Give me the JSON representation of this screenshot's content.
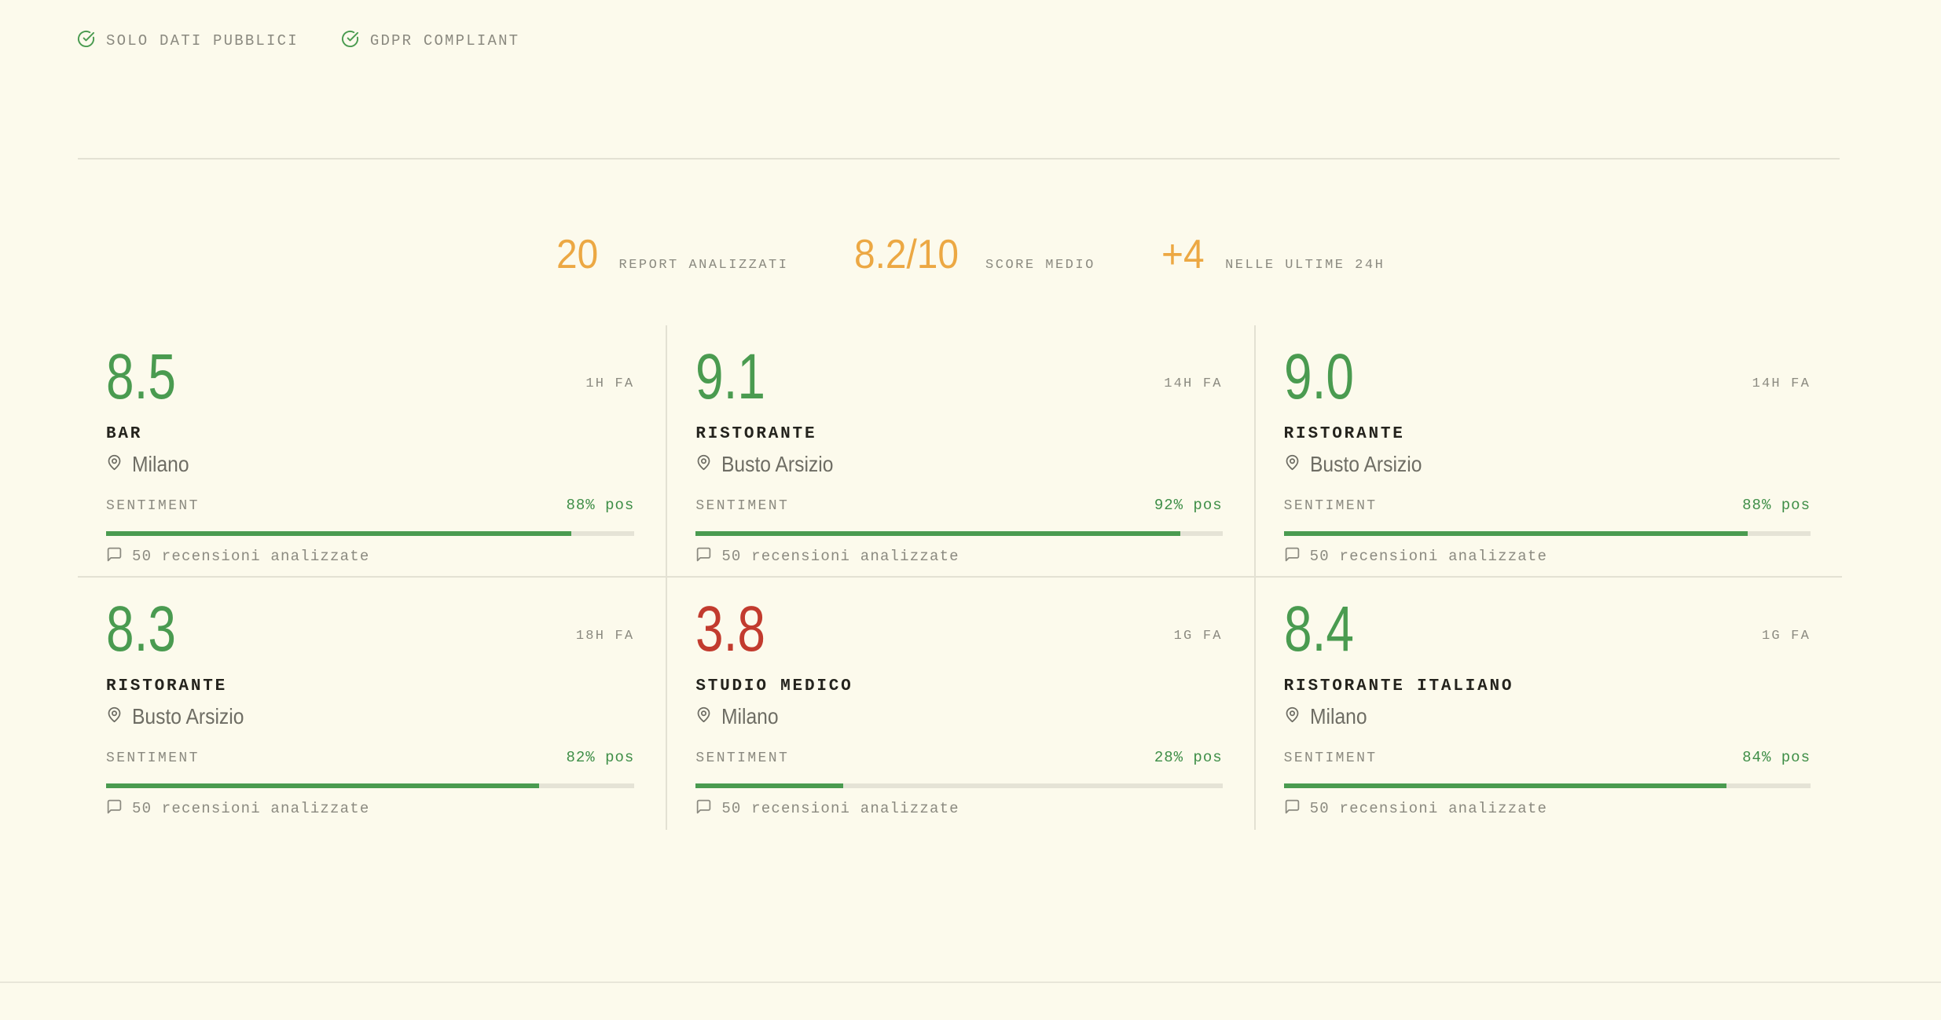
{
  "badges": [
    {
      "label": "SOLO DATI PUBBLICI",
      "icon": "check-circle-icon"
    },
    {
      "label": "GDPR COMPLIANT",
      "icon": "check-circle-icon"
    }
  ],
  "stats": [
    {
      "value": "20",
      "label": "REPORT ANALIZZATI"
    },
    {
      "value": "8.2/10",
      "label": "SCORE MEDIO"
    },
    {
      "value": "+4",
      "label": "NELLE ULTIME 24H"
    }
  ],
  "cards": [
    {
      "score": "8.5",
      "score_color": "green",
      "time_ago": "1H FA",
      "category": "BAR",
      "city": "Milano",
      "sentiment_label": "SENTIMENT",
      "sentiment_pct": 88,
      "sentiment_value": "88% pos",
      "reviews": "50 recensioni analizzate"
    },
    {
      "score": "9.1",
      "score_color": "green",
      "time_ago": "14H FA",
      "category": "RISTORANTE",
      "city": "Busto Arsizio",
      "sentiment_label": "SENTIMENT",
      "sentiment_pct": 92,
      "sentiment_value": "92% pos",
      "reviews": "50 recensioni analizzate"
    },
    {
      "score": "9.0",
      "score_color": "green",
      "time_ago": "14H FA",
      "category": "RISTORANTE",
      "city": "Busto Arsizio",
      "sentiment_label": "SENTIMENT",
      "sentiment_pct": 88,
      "sentiment_value": "88% pos",
      "reviews": "50 recensioni analizzate"
    },
    {
      "score": "8.3",
      "score_color": "green",
      "time_ago": "18H FA",
      "category": "RISTORANTE",
      "city": "Busto Arsizio",
      "sentiment_label": "SENTIMENT",
      "sentiment_pct": 82,
      "sentiment_value": "82% pos",
      "reviews": "50 recensioni analizzate"
    },
    {
      "score": "3.8",
      "score_color": "red",
      "time_ago": "1G FA",
      "category": "STUDIO MEDICO",
      "city": "Milano",
      "sentiment_label": "SENTIMENT",
      "sentiment_pct": 28,
      "sentiment_value": "28% pos",
      "reviews": "50 recensioni analizzate"
    },
    {
      "score": "8.4",
      "score_color": "green",
      "time_ago": "1G FA",
      "category": "RISTORANTE ITALIANO",
      "city": "Milano",
      "sentiment_label": "SENTIMENT",
      "sentiment_pct": 84,
      "sentiment_value": "84% pos",
      "reviews": "50 recensioni analizzate"
    }
  ],
  "colors": {
    "background": "#fcfaec",
    "score_green": "#4a9b50",
    "score_red": "#c23b2e",
    "stat_orange": "#eca843",
    "sentiment_green": "#3e8e47",
    "gray_text": "#8b8a80",
    "dark_text": "#24231d",
    "divider": "#e3e1d3",
    "bar_track": "#e5e3d6"
  },
  "icons": {
    "badge": "check-circle-icon",
    "location": "map-pin-icon",
    "reviews": "message-square-icon"
  }
}
